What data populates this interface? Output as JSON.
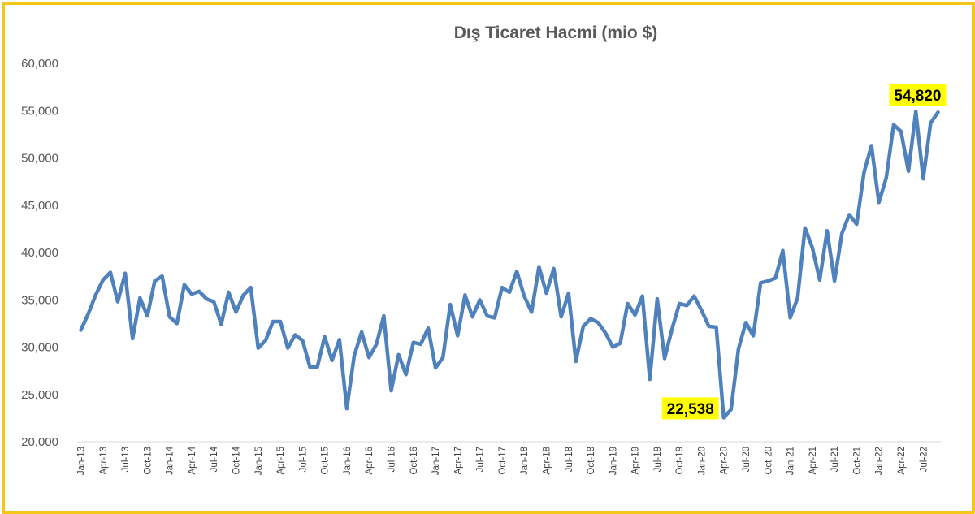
{
  "chart_data": {
    "type": "line",
    "title": "Dış Ticaret Hacmi (mio $)",
    "xlabel": "",
    "ylabel": "",
    "ylim": [
      20000,
      60000
    ],
    "ytick_values": [
      20000,
      25000,
      30000,
      35000,
      40000,
      45000,
      50000,
      55000,
      60000
    ],
    "ytick_labels": [
      "20,000",
      "25,000",
      "30,000",
      "35,000",
      "40,000",
      "45,000",
      "50,000",
      "55,000",
      "60,000"
    ],
    "grid": false,
    "legend": "none",
    "line_color": "#4F81BD",
    "x": [
      "Jan-13",
      "Feb-13",
      "Mar-13",
      "Apr-13",
      "May-13",
      "Jun-13",
      "Jul-13",
      "Aug-13",
      "Sep-13",
      "Oct-13",
      "Nov-13",
      "Dec-13",
      "Jan-14",
      "Feb-14",
      "Mar-14",
      "Apr-14",
      "May-14",
      "Jun-14",
      "Jul-14",
      "Aug-14",
      "Sep-14",
      "Oct-14",
      "Nov-14",
      "Dec-14",
      "Jan-15",
      "Feb-15",
      "Mar-15",
      "Apr-15",
      "May-15",
      "Jun-15",
      "Jul-15",
      "Aug-15",
      "Sep-15",
      "Oct-15",
      "Nov-15",
      "Dec-15",
      "Jan-16",
      "Feb-16",
      "Mar-16",
      "Apr-16",
      "May-16",
      "Jun-16",
      "Jul-16",
      "Aug-16",
      "Sep-16",
      "Oct-16",
      "Nov-16",
      "Dec-16",
      "Jan-17",
      "Feb-17",
      "Mar-17",
      "Apr-17",
      "May-17",
      "Jun-17",
      "Jul-17",
      "Aug-17",
      "Sep-17",
      "Oct-17",
      "Nov-17",
      "Dec-17",
      "Jan-18",
      "Feb-18",
      "Mar-18",
      "Apr-18",
      "May-18",
      "Jun-18",
      "Jul-18",
      "Aug-18",
      "Sep-18",
      "Oct-18",
      "Nov-18",
      "Dec-18",
      "Jan-19",
      "Feb-19",
      "Mar-19",
      "Apr-19",
      "May-19",
      "Jun-19",
      "Jul-19",
      "Aug-19",
      "Sep-19",
      "Oct-19",
      "Nov-19",
      "Dec-19",
      "Jan-20",
      "Feb-20",
      "Mar-20",
      "Apr-20",
      "May-20",
      "Jun-20",
      "Jul-20",
      "Aug-20",
      "Sep-20",
      "Oct-20",
      "Nov-20",
      "Dec-20",
      "Jan-21",
      "Feb-21",
      "Mar-21",
      "Apr-21",
      "May-21",
      "Jun-21",
      "Jul-21",
      "Aug-21",
      "Sep-21",
      "Oct-21",
      "Nov-21",
      "Dec-21",
      "Jan-22",
      "Feb-22",
      "Mar-22",
      "Apr-22",
      "May-22",
      "Jun-22",
      "Jul-22",
      "Aug-22",
      "Sep-22"
    ],
    "xtick_labels": [
      "Jan-13",
      "Apr-13",
      "Jul-13",
      "Oct-13",
      "Jan-14",
      "Apr-14",
      "Jul-14",
      "Oct-14",
      "Jan-15",
      "Apr-15",
      "Jul-15",
      "Oct-15",
      "Jan-16",
      "Apr-16",
      "Jul-16",
      "Oct-16",
      "Jan-17",
      "Apr-17",
      "Jul-17",
      "Oct-17",
      "Jan-18",
      "Apr-18",
      "Jul-18",
      "Oct-18",
      "Jan-19",
      "Apr-19",
      "Jul-19",
      "Oct-19",
      "Jan-20",
      "Apr-20",
      "Jul-20",
      "Oct-20",
      "Jan-21",
      "Apr-21",
      "Jul-21",
      "Oct-21",
      "Jan-22",
      "Apr-22",
      "Jul-22"
    ],
    "series": [
      {
        "values": [
          31800,
          33500,
          35500,
          37100,
          37900,
          34800,
          37800,
          30900,
          35200,
          33300,
          37000,
          37500,
          33200,
          32500,
          36600,
          35600,
          35900,
          35100,
          34800,
          32400,
          35800,
          33700,
          35500,
          36300,
          29900,
          30700,
          32700,
          32700,
          29900,
          31300,
          30700,
          27900,
          27900,
          31100,
          28600,
          30800,
          23500,
          29100,
          31600,
          28900,
          30300,
          33300,
          25400,
          29200,
          27100,
          30500,
          30300,
          32000,
          27800,
          28900,
          34500,
          31200,
          35500,
          33200,
          35000,
          33300,
          33100,
          36300,
          35800,
          38000,
          35400,
          33700,
          38500,
          35700,
          38300,
          33200,
          35700,
          28500,
          32200,
          33000,
          32600,
          31500,
          30000,
          30400,
          34600,
          33400,
          35400,
          26600,
          35100,
          28800,
          31900,
          34600,
          34400,
          35400,
          33900,
          32200,
          32100,
          22538,
          23400,
          29800,
          32600,
          31200,
          36800,
          37000,
          37300,
          40200,
          33100,
          35200,
          42600,
          40500,
          37100,
          42300,
          37000,
          42000,
          44000,
          43000,
          48500,
          51300,
          45300,
          47900,
          53500,
          52800,
          48600,
          54900,
          47800,
          53700,
          54820
        ]
      }
    ],
    "annotations": [
      {
        "label": "22,538",
        "point": "Apr-20"
      },
      {
        "label": "54,820",
        "point": "Sep-22"
      }
    ]
  }
}
